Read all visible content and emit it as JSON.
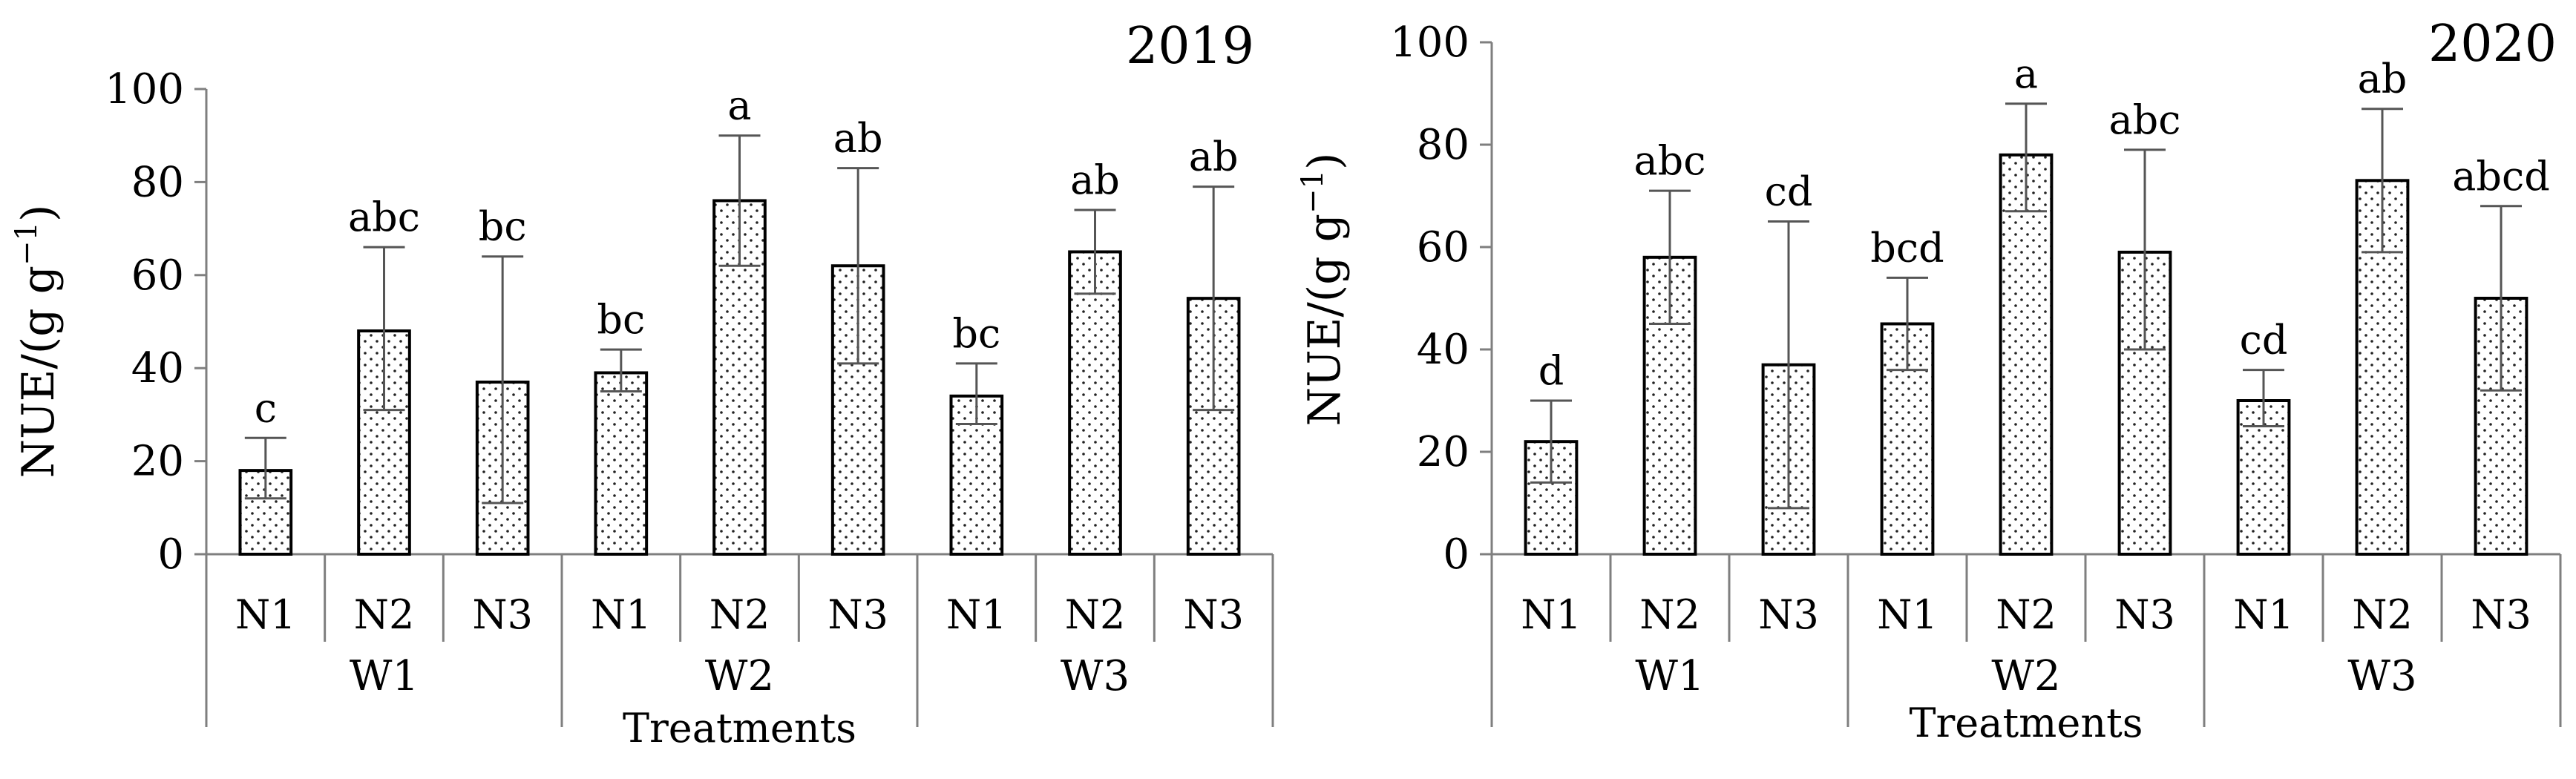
{
  "chart_data": [
    {
      "type": "bar",
      "title": "2019",
      "ylabel_main": "NUE/(g g",
      "ylabel_sup": "−1",
      "ylabel_close": ")",
      "xlabel": "Treatments",
      "ylim": [
        0,
        100
      ],
      "yticks": [
        "0",
        "20",
        "40",
        "60",
        "80",
        "100"
      ],
      "groups": [
        "W1",
        "W2",
        "W3"
      ],
      "categories": [
        "N1",
        "N2",
        "N3",
        "N1",
        "N2",
        "N3",
        "N1",
        "N2",
        "N3"
      ],
      "values": [
        18,
        48,
        37,
        39,
        76,
        62,
        34,
        65,
        55
      ],
      "err_low": [
        12,
        31,
        11,
        35,
        62,
        41,
        28,
        56,
        31
      ],
      "err_high": [
        25,
        66,
        64,
        44,
        90,
        83,
        41,
        74,
        79
      ],
      "letters": [
        "c",
        "abc",
        "bc",
        "bc",
        "a",
        "ab",
        "bc",
        "ab",
        "ab"
      ]
    },
    {
      "type": "bar",
      "title": "2020",
      "ylabel_main": "NUE/(g g",
      "ylabel_sup": "−1",
      "ylabel_close": ")",
      "xlabel": "Treatments",
      "ylim": [
        0,
        100
      ],
      "yticks": [
        "0",
        "20",
        "40",
        "60",
        "80",
        "100"
      ],
      "groups": [
        "W1",
        "W2",
        "W3"
      ],
      "categories": [
        "N1",
        "N2",
        "N3",
        "N1",
        "N2",
        "N3",
        "N1",
        "N2",
        "N3"
      ],
      "values": [
        22,
        58,
        37,
        45,
        78,
        59,
        30,
        73,
        50
      ],
      "err_low": [
        14,
        45,
        9,
        36,
        67,
        40,
        25,
        59,
        32
      ],
      "err_high": [
        30,
        71,
        65,
        54,
        88,
        79,
        36,
        87,
        68
      ],
      "letters": [
        "d",
        "abc",
        "cd",
        "bcd",
        "a",
        "abc",
        "cd",
        "ab",
        "abcd"
      ]
    }
  ]
}
